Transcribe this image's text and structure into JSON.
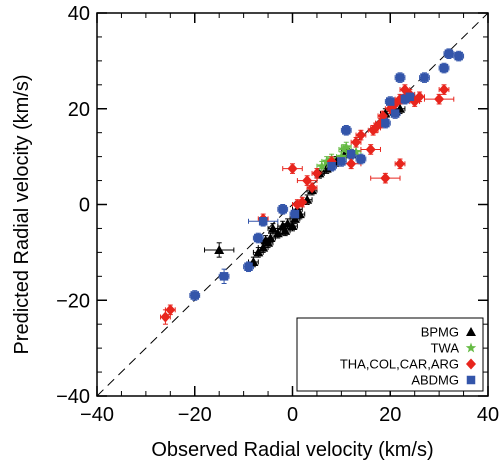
{
  "chart_data": {
    "type": "scatter",
    "xlabel": "Observed Radial velocity (km/s)",
    "ylabel": "Predicted Radial velocity  (km/s)",
    "xlim": [
      -40,
      40
    ],
    "ylim": [
      -40,
      40
    ],
    "x_ticks": [
      "−40",
      "−20",
      "0",
      "20",
      "40"
    ],
    "y_ticks": [
      "−40",
      "−20",
      "0",
      "20",
      "40"
    ],
    "reference_line": {
      "style": "dashed",
      "from": [
        -40,
        -40
      ],
      "to": [
        40,
        40
      ]
    },
    "legend_position": "bottom-right",
    "series": [
      {
        "name": "BPMG",
        "marker": "triangle",
        "color": "#000000",
        "points": [
          {
            "x": -15,
            "y": -9.5,
            "xerr": 3,
            "yerr": 1.5
          },
          {
            "x": -8,
            "y": -12,
            "xerr": 1,
            "yerr": 1
          },
          {
            "x": -7,
            "y": -10,
            "xerr": 1,
            "yerr": 1
          },
          {
            "x": -6,
            "y": -9,
            "xerr": 1,
            "yerr": 1
          },
          {
            "x": -5.5,
            "y": -7.5,
            "xerr": 1,
            "yerr": 1
          },
          {
            "x": -5,
            "y": -8,
            "xerr": 1,
            "yerr": 1
          },
          {
            "x": -4.5,
            "y": -7,
            "xerr": 1,
            "yerr": 1
          },
          {
            "x": -4,
            "y": -5,
            "xerr": 1,
            "yerr": 1
          },
          {
            "x": -3,
            "y": -6,
            "xerr": 1,
            "yerr": 1
          },
          {
            "x": -2,
            "y": -4.5,
            "xerr": 1,
            "yerr": 1
          },
          {
            "x": -1.5,
            "y": -5.5,
            "xerr": 1,
            "yerr": 1
          },
          {
            "x": -1,
            "y": -4,
            "xerr": 1,
            "yerr": 1
          },
          {
            "x": 0,
            "y": -4.5,
            "xerr": 1,
            "yerr": 1
          },
          {
            "x": 0.5,
            "y": -3,
            "xerr": 1,
            "yerr": 1
          },
          {
            "x": 1,
            "y": -1,
            "xerr": 1,
            "yerr": 1
          },
          {
            "x": 1.5,
            "y": -2,
            "xerr": 1,
            "yerr": 1
          },
          {
            "x": 3,
            "y": 1,
            "xerr": 1,
            "yerr": 1
          },
          {
            "x": 4,
            "y": 3,
            "xerr": 1,
            "yerr": 1
          },
          {
            "x": 5.5,
            "y": 6.5,
            "xerr": 1,
            "yerr": 1
          },
          {
            "x": 7,
            "y": 7.5,
            "xerr": 1,
            "yerr": 1
          },
          {
            "x": 9,
            "y": 9,
            "xerr": 1,
            "yerr": 1
          },
          {
            "x": 11,
            "y": 11,
            "xerr": 1,
            "yerr": 1
          },
          {
            "x": 12,
            "y": 10.5,
            "xerr": 1,
            "yerr": 1
          },
          {
            "x": 19,
            "y": 19,
            "xerr": 1,
            "yerr": 1
          },
          {
            "x": 21,
            "y": 19.5,
            "xerr": 1,
            "yerr": 1
          },
          {
            "x": 22,
            "y": 20,
            "xerr": 1,
            "yerr": 1
          }
        ]
      },
      {
        "name": "TWA",
        "marker": "star",
        "color": "#66bb44",
        "points": [
          {
            "x": 6,
            "y": 8,
            "xerr": 1,
            "yerr": 1
          },
          {
            "x": 7,
            "y": 9,
            "xerr": 1,
            "yerr": 1
          },
          {
            "x": 7.5,
            "y": 8.5,
            "xerr": 1,
            "yerr": 1
          },
          {
            "x": 8,
            "y": 9.5,
            "xerr": 1,
            "yerr": 1
          },
          {
            "x": 10,
            "y": 10,
            "xerr": 1,
            "yerr": 1
          },
          {
            "x": 10.5,
            "y": 11.5,
            "xerr": 1,
            "yerr": 1
          },
          {
            "x": 11,
            "y": 12,
            "xerr": 1,
            "yerr": 1
          },
          {
            "x": 11.5,
            "y": 11,
            "xerr": 1,
            "yerr": 1
          },
          {
            "x": 12,
            "y": 10.5,
            "xerr": 1,
            "yerr": 1
          },
          {
            "x": 13,
            "y": 11,
            "xerr": 1,
            "yerr": 1
          }
        ]
      },
      {
        "name": "THA,COL,CAR,ARG",
        "marker": "diamond",
        "color": "#e8251d",
        "points": [
          {
            "x": -26,
            "y": -23.5,
            "xerr": 1,
            "yerr": 1.5
          },
          {
            "x": -25,
            "y": -22,
            "xerr": 1,
            "yerr": 1
          },
          {
            "x": -6,
            "y": -3,
            "xerr": 1,
            "yerr": 1
          },
          {
            "x": 0,
            "y": 7.5,
            "xerr": 2,
            "yerr": 1
          },
          {
            "x": 1,
            "y": 0,
            "xerr": 1,
            "yerr": 1
          },
          {
            "x": 2,
            "y": 0.5,
            "xerr": 1,
            "yerr": 1
          },
          {
            "x": 3,
            "y": 5,
            "xerr": 2,
            "yerr": 1
          },
          {
            "x": 4,
            "y": 3.5,
            "xerr": 1,
            "yerr": 1
          },
          {
            "x": 5,
            "y": 6.5,
            "xerr": 1,
            "yerr": 1
          },
          {
            "x": 8,
            "y": 9,
            "xerr": 1,
            "yerr": 1
          },
          {
            "x": 12,
            "y": 8.5,
            "xerr": 2,
            "yerr": 1
          },
          {
            "x": 13,
            "y": 13,
            "xerr": 1,
            "yerr": 1
          },
          {
            "x": 14,
            "y": 14.5,
            "xerr": 1,
            "yerr": 1
          },
          {
            "x": 16,
            "y": 11.5,
            "xerr": 2,
            "yerr": 1
          },
          {
            "x": 16.5,
            "y": 15.5,
            "xerr": 1,
            "yerr": 1
          },
          {
            "x": 17,
            "y": 16,
            "xerr": 1,
            "yerr": 1
          },
          {
            "x": 18,
            "y": 17,
            "xerr": 1,
            "yerr": 1
          },
          {
            "x": 18.5,
            "y": 18.5,
            "xerr": 1,
            "yerr": 1
          },
          {
            "x": 19,
            "y": 5.5,
            "xerr": 3,
            "yerr": 1
          },
          {
            "x": 20,
            "y": 20,
            "xerr": 1,
            "yerr": 1
          },
          {
            "x": 21,
            "y": 21,
            "xerr": 1,
            "yerr": 1
          },
          {
            "x": 22,
            "y": 22,
            "xerr": 1,
            "yerr": 1
          },
          {
            "x": 22,
            "y": 8.5,
            "xerr": 1,
            "yerr": 1
          },
          {
            "x": 23,
            "y": 24,
            "xerr": 1,
            "yerr": 1
          },
          {
            "x": 24,
            "y": 23,
            "xerr": 1,
            "yerr": 1
          },
          {
            "x": 25,
            "y": 21.5,
            "xerr": 1,
            "yerr": 1
          },
          {
            "x": 26,
            "y": 22.5,
            "xerr": 1,
            "yerr": 1
          },
          {
            "x": 30,
            "y": 22,
            "xerr": 3,
            "yerr": 1
          },
          {
            "x": 31,
            "y": 24,
            "xerr": 1,
            "yerr": 1
          }
        ]
      },
      {
        "name": "ABDMG",
        "marker": "square",
        "color": "#3355aa",
        "points": [
          {
            "x": -20,
            "y": -19,
            "xerr": 1,
            "yerr": 1
          },
          {
            "x": -14,
            "y": -15,
            "xerr": 1,
            "yerr": 1.5
          },
          {
            "x": -9,
            "y": -13,
            "xerr": 1,
            "yerr": 1
          },
          {
            "x": -7,
            "y": -7,
            "xerr": 1,
            "yerr": 1
          },
          {
            "x": -6,
            "y": -3.5,
            "xerr": 3,
            "yerr": 1
          },
          {
            "x": -2,
            "y": -1,
            "xerr": 1,
            "yerr": 1
          },
          {
            "x": 0.5,
            "y": -2,
            "xerr": 1,
            "yerr": 1
          },
          {
            "x": 8,
            "y": 8,
            "xerr": 1,
            "yerr": 1
          },
          {
            "x": 10,
            "y": 9,
            "xerr": 1,
            "yerr": 1
          },
          {
            "x": 11,
            "y": 15.5,
            "xerr": 1,
            "yerr": 1
          },
          {
            "x": 12,
            "y": 10.5,
            "xerr": 1,
            "yerr": 1
          },
          {
            "x": 14,
            "y": 9.5,
            "xerr": 1,
            "yerr": 1
          },
          {
            "x": 19,
            "y": 17,
            "xerr": 1,
            "yerr": 1
          },
          {
            "x": 20,
            "y": 21.5,
            "xerr": 1,
            "yerr": 1
          },
          {
            "x": 21,
            "y": 19,
            "xerr": 1,
            "yerr": 1
          },
          {
            "x": 22,
            "y": 26.5,
            "xerr": 1,
            "yerr": 1
          },
          {
            "x": 23,
            "y": 22,
            "xerr": 1,
            "yerr": 1
          },
          {
            "x": 24,
            "y": 22.5,
            "xerr": 1,
            "yerr": 1
          },
          {
            "x": 27,
            "y": 26.5,
            "xerr": 1,
            "yerr": 1
          },
          {
            "x": 31,
            "y": 28.5,
            "xerr": 1,
            "yerr": 1
          },
          {
            "x": 32,
            "y": 31.5,
            "xerr": 1,
            "yerr": 1
          },
          {
            "x": 34,
            "y": 31,
            "xerr": 1,
            "yerr": 1
          }
        ]
      }
    ]
  }
}
